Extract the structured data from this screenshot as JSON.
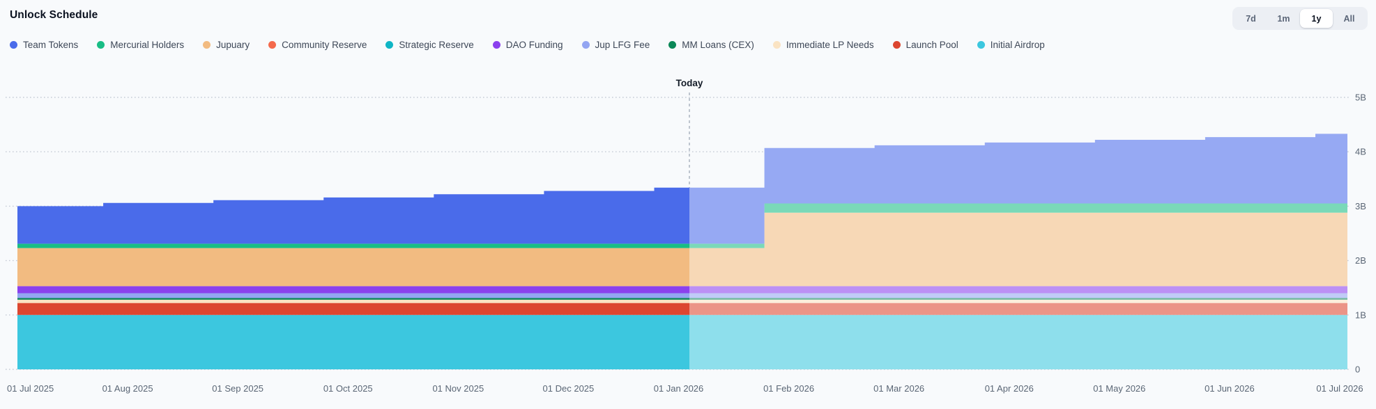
{
  "header": {
    "title": "Unlock Schedule"
  },
  "range_selector": {
    "options": [
      {
        "label": "7d",
        "active": false
      },
      {
        "label": "1m",
        "active": false
      },
      {
        "label": "1y",
        "active": true
      },
      {
        "label": "All",
        "active": false
      }
    ]
  },
  "legend": [
    {
      "name": "Team Tokens",
      "color": "#4a6bea"
    },
    {
      "name": "Mercurial Holders",
      "color": "#19bd85"
    },
    {
      "name": "Jupuary",
      "color": "#f2bb81"
    },
    {
      "name": "Community Reserve",
      "color": "#f4694c"
    },
    {
      "name": "Strategic Reserve",
      "color": "#0fb5c5"
    },
    {
      "name": "DAO Funding",
      "color": "#8b40ee"
    },
    {
      "name": "Jup LFG Fee",
      "color": "#93a5f2"
    },
    {
      "name": "MM Loans (CEX)",
      "color": "#0b8757"
    },
    {
      "name": "Immediate LP Needs",
      "color": "#fae3c3"
    },
    {
      "name": "Launch Pool",
      "color": "#dc4630"
    },
    {
      "name": "Initial Airdrop",
      "color": "#3cc7df"
    }
  ],
  "chart_data": {
    "type": "area",
    "stacked": true,
    "step": true,
    "title": "Unlock Schedule",
    "x_labels": [
      "01 Jul 2025",
      "01 Aug 2025",
      "01 Sep 2025",
      "01 Oct 2025",
      "01 Nov 2025",
      "01 Dec 2025",
      "01 Jan 2026",
      "01 Feb 2026",
      "01 Mar 2026",
      "01 Apr 2026",
      "01 May 2026",
      "01 Jun 2026",
      "01 Jul 2026"
    ],
    "y_tick_labels": [
      "0",
      "1B",
      "2B",
      "3B",
      "4B",
      "5B"
    ],
    "ylim_tokens_billions": [
      0,
      5
    ],
    "unit": "billion tokens",
    "today_label": "Today",
    "today_index": 6.1,
    "faded_after_today": true,
    "legend_position": "top",
    "grid": "dotted-horizontal",
    "series_bottom_to_top": [
      {
        "name": "Initial Airdrop",
        "color": "#3cc7df",
        "values": [
          1.0,
          1.0,
          1.0,
          1.0,
          1.0,
          1.0,
          1.0,
          1.0,
          1.0,
          1.0,
          1.0,
          1.0,
          1.0
        ]
      },
      {
        "name": "Launch Pool",
        "color": "#dc4630",
        "values": [
          0.22,
          0.22,
          0.22,
          0.22,
          0.22,
          0.22,
          0.22,
          0.22,
          0.22,
          0.22,
          0.22,
          0.22,
          0.22
        ]
      },
      {
        "name": "Immediate LP Needs",
        "color": "#fae3c3",
        "values": [
          0.06,
          0.06,
          0.06,
          0.06,
          0.06,
          0.06,
          0.06,
          0.06,
          0.06,
          0.06,
          0.06,
          0.06,
          0.06
        ]
      },
      {
        "name": "MM Loans (CEX)",
        "color": "#0b8757",
        "values": [
          0.03,
          0.03,
          0.03,
          0.03,
          0.03,
          0.03,
          0.03,
          0.03,
          0.03,
          0.03,
          0.03,
          0.03,
          0.03
        ]
      },
      {
        "name": "Jup LFG Fee",
        "color": "#93a5f2",
        "values": [
          0.09,
          0.09,
          0.09,
          0.09,
          0.09,
          0.09,
          0.09,
          0.09,
          0.09,
          0.09,
          0.09,
          0.09,
          0.09
        ]
      },
      {
        "name": "DAO Funding",
        "color": "#8b40ee",
        "values": [
          0.13,
          0.13,
          0.13,
          0.13,
          0.13,
          0.13,
          0.13,
          0.13,
          0.13,
          0.13,
          0.13,
          0.13,
          0.13
        ]
      },
      {
        "name": "Strategic Reserve",
        "color": "#0fb5c5",
        "values": [
          0,
          0,
          0,
          0,
          0,
          0,
          0,
          0,
          0,
          0,
          0,
          0,
          0
        ]
      },
      {
        "name": "Community Reserve",
        "color": "#f4694c",
        "values": [
          0,
          0,
          0,
          0,
          0,
          0,
          0,
          0,
          0,
          0,
          0,
          0,
          0
        ]
      },
      {
        "name": "Jupuary",
        "color": "#f2bb81",
        "values": [
          0.7,
          0.7,
          0.7,
          0.7,
          0.7,
          0.7,
          0.7,
          1.35,
          1.35,
          1.35,
          1.35,
          1.35,
          1.35
        ]
      },
      {
        "name": "Mercurial Holders",
        "color": "#19bd85",
        "values": [
          0.08,
          0.08,
          0.08,
          0.08,
          0.08,
          0.08,
          0.08,
          0.17,
          0.17,
          0.17,
          0.17,
          0.17,
          0.17
        ]
      },
      {
        "name": "Team Tokens",
        "color": "#4a6bea",
        "values": [
          0.69,
          0.75,
          0.8,
          0.85,
          0.91,
          0.97,
          1.03,
          1.02,
          1.07,
          1.12,
          1.17,
          1.22,
          1.28
        ]
      }
    ]
  }
}
